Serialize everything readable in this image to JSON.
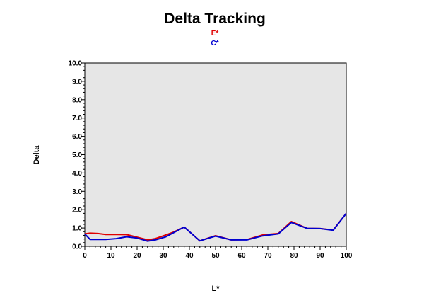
{
  "chart_data": {
    "type": "line",
    "title": "Delta Tracking",
    "xlabel": "L*",
    "ylabel": "Delta",
    "xlim": [
      0,
      100
    ],
    "ylim": [
      0,
      10
    ],
    "x_ticks": [
      0,
      10,
      20,
      30,
      40,
      50,
      60,
      70,
      80,
      90,
      100
    ],
    "y_ticks": [
      0,
      1,
      2,
      3,
      4,
      5,
      6,
      7,
      8,
      9,
      10
    ],
    "x_tick_labels": [
      "0",
      "10",
      "20",
      "30",
      "40",
      "50",
      "60",
      "70",
      "80",
      "90",
      "100"
    ],
    "y_tick_labels": [
      "0.0",
      "1.0",
      "2.0",
      "3.0",
      "4.0",
      "5.0",
      "6.0",
      "7.0",
      "8.0",
      "9.0",
      "10.0"
    ],
    "plot_background": "#e6e6e6",
    "grid": false,
    "legend_position": "top-center",
    "series": [
      {
        "name": "E*",
        "color": "#e00000",
        "points": [
          [
            0,
            0.68
          ],
          [
            2,
            0.72
          ],
          [
            5,
            0.7
          ],
          [
            8,
            0.65
          ],
          [
            12,
            0.65
          ],
          [
            16,
            0.64
          ],
          [
            20,
            0.5
          ],
          [
            24,
            0.35
          ],
          [
            27,
            0.42
          ],
          [
            31,
            0.62
          ],
          [
            34,
            0.78
          ],
          [
            38,
            1.05
          ],
          [
            44,
            0.3
          ],
          [
            50,
            0.58
          ],
          [
            56,
            0.35
          ],
          [
            62,
            0.37
          ],
          [
            68,
            0.62
          ],
          [
            74,
            0.7
          ],
          [
            79,
            1.35
          ],
          [
            85,
            0.98
          ],
          [
            90,
            0.97
          ],
          [
            95,
            0.89
          ],
          [
            100,
            1.8
          ]
        ]
      },
      {
        "name": "C*",
        "color": "#0000d0",
        "points": [
          [
            0,
            0.68
          ],
          [
            2,
            0.38
          ],
          [
            5,
            0.38
          ],
          [
            8,
            0.38
          ],
          [
            12,
            0.42
          ],
          [
            16,
            0.52
          ],
          [
            20,
            0.45
          ],
          [
            24,
            0.28
          ],
          [
            27,
            0.35
          ],
          [
            31,
            0.52
          ],
          [
            34,
            0.75
          ],
          [
            38,
            1.05
          ],
          [
            44,
            0.3
          ],
          [
            50,
            0.56
          ],
          [
            56,
            0.35
          ],
          [
            62,
            0.35
          ],
          [
            68,
            0.57
          ],
          [
            74,
            0.68
          ],
          [
            79,
            1.3
          ],
          [
            85,
            0.98
          ],
          [
            90,
            0.97
          ],
          [
            95,
            0.88
          ],
          [
            100,
            1.8
          ]
        ]
      }
    ]
  }
}
